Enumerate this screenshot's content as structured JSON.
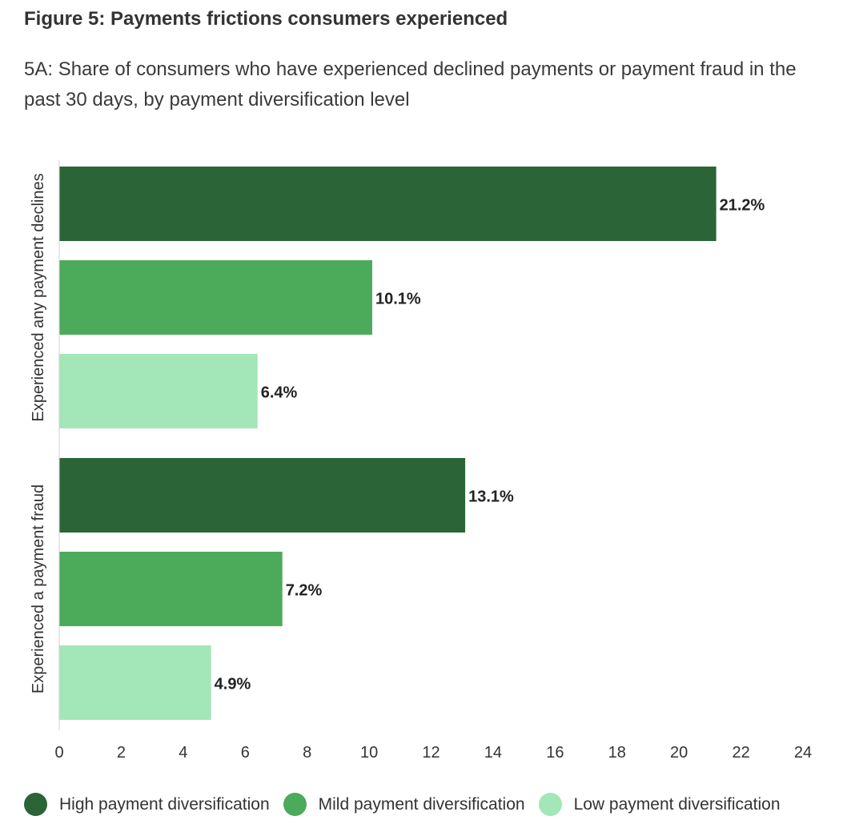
{
  "chart_data": {
    "type": "bar",
    "orientation": "horizontal",
    "title": "Figure 5: Payments frictions consumers experienced",
    "subtitle": "5A: Share of consumers who have experienced declined payments or payment fraud in the past 30 days, by payment diversification level",
    "groups": [
      "Experienced any payment declines",
      "Experienced a payment fraud"
    ],
    "series": [
      {
        "name": "High payment diversification",
        "color": "#2a6437",
        "values": [
          21.2,
          13.1
        ],
        "labels": [
          "21.2%",
          "13.1%"
        ]
      },
      {
        "name": "Mild payment diversification",
        "color": "#4caa5b",
        "values": [
          10.1,
          7.2
        ],
        "labels": [
          "10.1%",
          "7.2%"
        ]
      },
      {
        "name": "Low payment diversification",
        "color": "#a3e6b8",
        "values": [
          6.4,
          4.9
        ],
        "labels": [
          "6.4%",
          "4.9%"
        ]
      }
    ],
    "xlim": [
      0,
      24
    ],
    "xticks": [
      "0",
      "2",
      "4",
      "6",
      "8",
      "10",
      "12",
      "14",
      "16",
      "18",
      "20",
      "22",
      "24"
    ],
    "grid": false,
    "legend_position": "bottom"
  }
}
